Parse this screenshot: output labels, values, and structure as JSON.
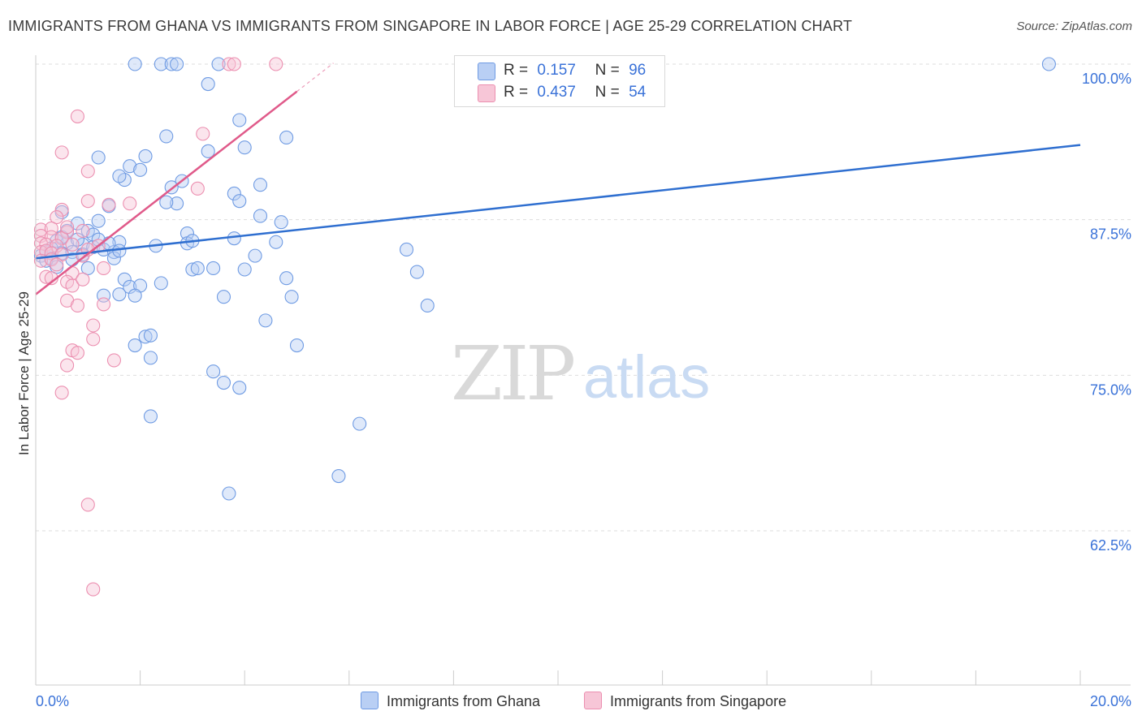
{
  "title": "IMMIGRANTS FROM GHANA VS IMMIGRANTS FROM SINGAPORE IN LABOR FORCE | AGE 25-29 CORRELATION CHART",
  "source": "Source: ZipAtlas.com",
  "watermark": {
    "zip": "ZIP",
    "atlas": "atlas"
  },
  "legend": {
    "ghana": {
      "r_label": "R =",
      "r_value": "0.157",
      "n_label": "N =",
      "n_value": "96"
    },
    "singapore": {
      "r_label": "R =",
      "r_value": "0.437",
      "n_label": "N =",
      "n_value": "54"
    }
  },
  "colors": {
    "ghana": "#6f9be3",
    "ghana_fill": "#b9cff4",
    "ghana_line": "#2f6fd0",
    "singapore": "#ec8fb0",
    "singapore_fill": "#f7c6d7",
    "singapore_line": "#e05a8a",
    "axis_text": "#3a72d8"
  },
  "chart_data": {
    "type": "scatter",
    "title": "IMMIGRANTS FROM GHANA VS IMMIGRANTS FROM SINGAPORE IN LABOR FORCE | AGE 25-29 CORRELATION CHART",
    "xlabel": "",
    "ylabel": "In Labor Force | Age 25-29",
    "xlim": [
      0,
      20
    ],
    "ylim": [
      50,
      102
    ],
    "x_tick_labels": [
      "0.0%",
      "20.0%"
    ],
    "y_ticks": [
      62.5,
      75.0,
      87.5,
      100.0
    ],
    "y_tick_labels": [
      "62.5%",
      "75.0%",
      "87.5%",
      "100.0%"
    ],
    "grid": "horizontal dashed",
    "legend_position": "top-center",
    "series": [
      {
        "name": "Immigrants from Ghana",
        "color": "#6f9be3",
        "trend": {
          "x": [
            0,
            20
          ],
          "y": [
            84.4,
            93.5
          ]
        },
        "points": [
          [
            1.9,
            100
          ],
          [
            2.4,
            100
          ],
          [
            2.6,
            100
          ],
          [
            2.7,
            100
          ],
          [
            3.5,
            100
          ],
          [
            8.2,
            100
          ],
          [
            19.4,
            100
          ],
          [
            3.3,
            98.4
          ],
          [
            3.9,
            95.5
          ],
          [
            4.8,
            94.1
          ],
          [
            2.5,
            94.2
          ],
          [
            4.0,
            93.3
          ],
          [
            3.3,
            93.0
          ],
          [
            1.2,
            92.5
          ],
          [
            2.1,
            92.6
          ],
          [
            1.8,
            91.8
          ],
          [
            2.0,
            91.5
          ],
          [
            1.7,
            90.7
          ],
          [
            2.8,
            90.6
          ],
          [
            2.6,
            90.1
          ],
          [
            4.3,
            90.3
          ],
          [
            3.8,
            89.6
          ],
          [
            3.9,
            89.0
          ],
          [
            2.7,
            88.8
          ],
          [
            1.4,
            88.6
          ],
          [
            0.5,
            88.1
          ],
          [
            4.3,
            87.8
          ],
          [
            4.7,
            87.3
          ],
          [
            0.8,
            87.2
          ],
          [
            1.2,
            87.4
          ],
          [
            0.6,
            86.6
          ],
          [
            1.0,
            86.6
          ],
          [
            1.1,
            86.3
          ],
          [
            2.9,
            86.4
          ],
          [
            3.8,
            86.0
          ],
          [
            0.4,
            85.8
          ],
          [
            0.6,
            85.6
          ],
          [
            0.9,
            85.5
          ],
          [
            1.1,
            85.3
          ],
          [
            1.6,
            85.7
          ],
          [
            2.3,
            85.4
          ],
          [
            2.9,
            85.6
          ],
          [
            3.0,
            85.8
          ],
          [
            4.6,
            85.7
          ],
          [
            7.1,
            85.1
          ],
          [
            0.2,
            84.9
          ],
          [
            0.5,
            84.8
          ],
          [
            0.7,
            84.9
          ],
          [
            1.3,
            85.1
          ],
          [
            1.5,
            84.9
          ],
          [
            0.3,
            84.4
          ],
          [
            0.7,
            84.3
          ],
          [
            1.5,
            84.4
          ],
          [
            4.2,
            84.6
          ],
          [
            0.4,
            83.7
          ],
          [
            1.0,
            83.6
          ],
          [
            3.0,
            83.5
          ],
          [
            3.4,
            83.6
          ],
          [
            3.1,
            83.6
          ],
          [
            4.0,
            83.5
          ],
          [
            7.3,
            83.3
          ],
          [
            1.7,
            82.7
          ],
          [
            1.8,
            82.1
          ],
          [
            2.0,
            82.2
          ],
          [
            2.4,
            82.4
          ],
          [
            4.8,
            82.8
          ],
          [
            1.3,
            81.4
          ],
          [
            1.6,
            81.5
          ],
          [
            1.9,
            81.4
          ],
          [
            3.6,
            81.3
          ],
          [
            4.9,
            81.3
          ],
          [
            7.5,
            80.6
          ],
          [
            4.4,
            79.4
          ],
          [
            2.1,
            78.1
          ],
          [
            2.2,
            78.2
          ],
          [
            1.9,
            77.4
          ],
          [
            5.0,
            77.4
          ],
          [
            2.2,
            76.4
          ],
          [
            3.4,
            75.3
          ],
          [
            3.6,
            74.4
          ],
          [
            3.9,
            74.0
          ],
          [
            2.2,
            71.7
          ],
          [
            6.2,
            71.1
          ],
          [
            5.8,
            66.9
          ],
          [
            3.7,
            65.5
          ],
          [
            0.1,
            84.6
          ],
          [
            0.3,
            85.2
          ],
          [
            0.5,
            86.1
          ],
          [
            0.8,
            85.9
          ],
          [
            1.4,
            85.6
          ],
          [
            1.6,
            85.0
          ],
          [
            0.2,
            84.2
          ],
          [
            0.9,
            84.7
          ],
          [
            1.2,
            85.9
          ],
          [
            2.5,
            88.9
          ],
          [
            1.6,
            91.0
          ]
        ]
      },
      {
        "name": "Immigrants from Singapore",
        "color": "#ec8fb0",
        "trend": {
          "x": [
            0,
            5.0
          ],
          "y": [
            81.5,
            97.8
          ]
        },
        "points": [
          [
            3.7,
            100
          ],
          [
            3.8,
            100
          ],
          [
            4.6,
            100
          ],
          [
            0.8,
            95.8
          ],
          [
            3.2,
            94.4
          ],
          [
            0.5,
            92.9
          ],
          [
            1.0,
            91.4
          ],
          [
            3.1,
            90.0
          ],
          [
            1.0,
            89.0
          ],
          [
            1.4,
            88.7
          ],
          [
            1.8,
            88.8
          ],
          [
            0.5,
            88.3
          ],
          [
            0.4,
            87.7
          ],
          [
            0.1,
            86.7
          ],
          [
            0.3,
            86.8
          ],
          [
            0.6,
            86.5
          ],
          [
            0.9,
            86.6
          ],
          [
            0.1,
            86.2
          ],
          [
            0.3,
            86.1
          ],
          [
            0.5,
            86.0
          ],
          [
            0.1,
            85.6
          ],
          [
            0.2,
            85.5
          ],
          [
            0.4,
            85.4
          ],
          [
            0.7,
            85.5
          ],
          [
            1.2,
            85.4
          ],
          [
            0.1,
            84.9
          ],
          [
            0.2,
            85.0
          ],
          [
            0.3,
            84.8
          ],
          [
            0.5,
            84.7
          ],
          [
            0.9,
            84.6
          ],
          [
            0.1,
            84.2
          ],
          [
            0.3,
            84.3
          ],
          [
            0.4,
            83.9
          ],
          [
            0.7,
            83.2
          ],
          [
            1.3,
            83.6
          ],
          [
            0.2,
            82.9
          ],
          [
            0.3,
            82.8
          ],
          [
            0.6,
            82.5
          ],
          [
            0.7,
            82.2
          ],
          [
            0.9,
            82.7
          ],
          [
            0.6,
            81.0
          ],
          [
            0.8,
            80.6
          ],
          [
            1.3,
            80.7
          ],
          [
            1.1,
            79.0
          ],
          [
            1.1,
            77.9
          ],
          [
            0.7,
            77.0
          ],
          [
            0.8,
            76.8
          ],
          [
            1.5,
            76.2
          ],
          [
            0.6,
            75.8
          ],
          [
            0.5,
            73.6
          ],
          [
            1.0,
            64.6
          ],
          [
            1.1,
            57.8
          ],
          [
            0.6,
            86.9
          ],
          [
            1.0,
            85.1
          ]
        ]
      }
    ]
  },
  "bottom_legend": [
    "Immigrants from Ghana",
    "Immigrants from Singapore"
  ]
}
